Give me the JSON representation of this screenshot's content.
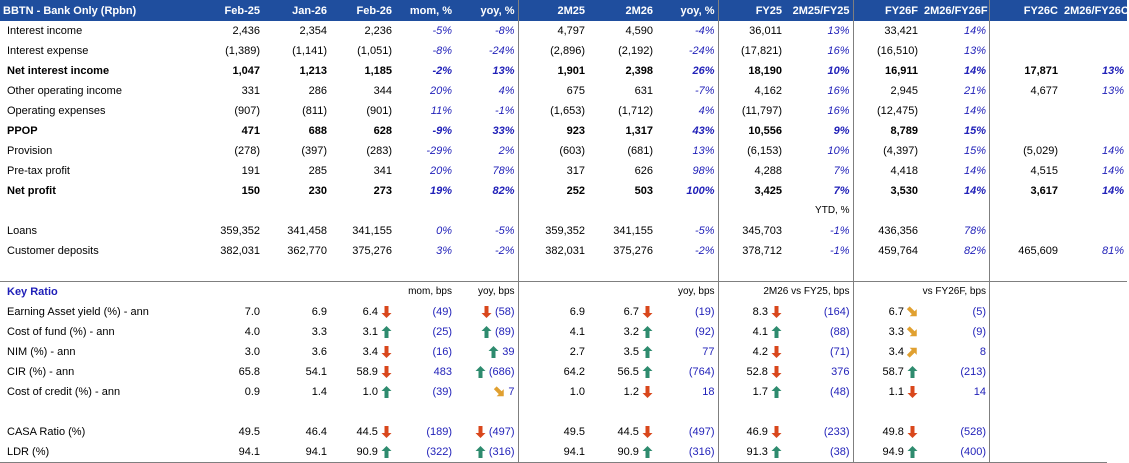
{
  "header": {
    "title": "BBTN - Bank Only (Rpbn)",
    "cols": [
      "Feb-25",
      "Jan-26",
      "Feb-26",
      "mom, %",
      "yoy, %",
      "2M25",
      "2M26",
      "yoy, %",
      "FY25",
      "2M25/FY25",
      "FY26F",
      "2M26/FY26F",
      "",
      "FY26C",
      "2M26/FY26C"
    ]
  },
  "colors": {
    "header_bg": "#1f4e9e",
    "accent_text": "#1f1fb8",
    "arrow_down": "#d9471c",
    "arrow_up": "#2e8b6e",
    "arrow_diag": "#e0a030"
  },
  "pl": [
    {
      "label": "Interest income",
      "bold": false,
      "v": [
        "2,436",
        "2,354",
        "2,236",
        "-5%",
        "-8%",
        "4,797",
        "4,590",
        "-4%",
        "36,011",
        "13%",
        "33,421",
        "14%",
        "",
        "",
        ""
      ]
    },
    {
      "label": "Interest expense",
      "bold": false,
      "v": [
        "(1,389)",
        "(1,141)",
        "(1,051)",
        "-8%",
        "-24%",
        "(2,896)",
        "(2,192)",
        "-24%",
        "(17,821)",
        "16%",
        "(16,510)",
        "13%",
        "",
        "",
        ""
      ]
    },
    {
      "label": "Net interest income",
      "bold": true,
      "v": [
        "1,047",
        "1,213",
        "1,185",
        "-2%",
        "13%",
        "1,901",
        "2,398",
        "26%",
        "18,190",
        "10%",
        "16,911",
        "14%",
        "",
        "17,871",
        "13%"
      ]
    },
    {
      "label": "Other operating income",
      "bold": false,
      "v": [
        "331",
        "286",
        "344",
        "20%",
        "4%",
        "675",
        "631",
        "-7%",
        "4,162",
        "16%",
        "2,945",
        "21%",
        "",
        "4,677",
        "13%"
      ]
    },
    {
      "label": "Operating expenses",
      "bold": false,
      "v": [
        "(907)",
        "(811)",
        "(901)",
        "11%",
        "-1%",
        "(1,653)",
        "(1,712)",
        "4%",
        "(11,797)",
        "16%",
        "(12,475)",
        "14%",
        "",
        "",
        ""
      ]
    },
    {
      "label": "PPOP",
      "bold": true,
      "v": [
        "471",
        "688",
        "628",
        "-9%",
        "33%",
        "923",
        "1,317",
        "43%",
        "10,556",
        "9%",
        "8,789",
        "15%",
        "",
        "",
        ""
      ]
    },
    {
      "label": "Provision",
      "bold": false,
      "v": [
        "(278)",
        "(397)",
        "(283)",
        "-29%",
        "2%",
        "(603)",
        "(681)",
        "13%",
        "(6,153)",
        "10%",
        "(4,397)",
        "15%",
        "",
        "(5,029)",
        "14%"
      ]
    },
    {
      "label": "Pre-tax profit",
      "bold": false,
      "v": [
        "191",
        "285",
        "341",
        "20%",
        "78%",
        "317",
        "626",
        "98%",
        "4,288",
        "7%",
        "4,418",
        "14%",
        "",
        "4,515",
        "14%"
      ]
    },
    {
      "label": "Net profit",
      "bold": true,
      "v": [
        "150",
        "230",
        "273",
        "19%",
        "82%",
        "252",
        "503",
        "100%",
        "3,425",
        "7%",
        "3,530",
        "14%",
        "",
        "3,617",
        "14%"
      ]
    }
  ],
  "ytd_label": "YTD, %",
  "bs": [
    {
      "label": "Loans",
      "v": [
        "359,352",
        "341,458",
        "341,155",
        "0%",
        "-5%",
        "359,352",
        "341,155",
        "-5%",
        "345,703",
        "-1%",
        "436,356",
        "78%",
        "",
        "",
        ""
      ]
    },
    {
      "label": "Customer deposits",
      "v": [
        "382,031",
        "362,770",
        "375,276",
        "3%",
        "-2%",
        "382,031",
        "375,276",
        "-2%",
        "378,712",
        "-1%",
        "459,764",
        "82%",
        "",
        "465,609",
        "81%"
      ]
    }
  ],
  "key_ratio": {
    "title": "Key Ratio",
    "sub_mom": "mom, bps",
    "sub_yoy": "yoy, bps",
    "sub_yoy2": "yoy, bps",
    "sub_fy25": "2M26 vs FY25, bps",
    "sub_fy26": "vs FY26F, bps",
    "rows": [
      {
        "label": "Earning Asset yield (%) - ann",
        "feb25": "7.0",
        "jan26": "6.9",
        "feb26": "6.4",
        "a1": "down",
        "mom": "(49)",
        "a2": "down",
        "yoy": "(58)",
        "m25": "6.9",
        "m26": "6.7",
        "a3": "down",
        "yoy2": "(19)",
        "fy25": "8.3",
        "a4": "down",
        "d25": "(164)",
        "fy26": "6.7",
        "a5": "diag-down",
        "d26": "(5)"
      },
      {
        "label": "Cost of fund (%) - ann",
        "feb25": "4.0",
        "jan26": "3.3",
        "feb26": "3.1",
        "a1": "up",
        "mom": "(25)",
        "a2": "up",
        "yoy": "(89)",
        "m25": "4.1",
        "m26": "3.2",
        "a3": "up",
        "yoy2": "(92)",
        "fy25": "4.1",
        "a4": "up",
        "d25": "(88)",
        "fy26": "3.3",
        "a5": "diag-down",
        "d26": "(9)"
      },
      {
        "label": "NIM (%) - ann",
        "feb25": "3.0",
        "jan26": "3.6",
        "feb26": "3.4",
        "a1": "down",
        "mom": "(16)",
        "a2": "up",
        "yoy": "39",
        "m25": "2.7",
        "m26": "3.5",
        "a3": "up",
        "yoy2": "77",
        "fy25": "4.2",
        "a4": "down",
        "d25": "(71)",
        "fy26": "3.4",
        "a5": "diag-up",
        "d26": "8"
      },
      {
        "label": "CIR (%) - ann",
        "feb25": "65.8",
        "jan26": "54.1",
        "feb26": "58.9",
        "a1": "down",
        "mom": "483",
        "a2": "up",
        "yoy": "(686)",
        "m25": "64.2",
        "m26": "56.5",
        "a3": "up",
        "yoy2": "(764)",
        "fy25": "52.8",
        "a4": "down",
        "d25": "376",
        "fy26": "58.7",
        "a5": "up",
        "d26": "(213)"
      },
      {
        "label": "Cost of credit (%) - ann",
        "feb25": "0.9",
        "jan26": "1.4",
        "feb26": "1.0",
        "a1": "up",
        "mom": "(39)",
        "a2": "diag-down",
        "yoy": "7",
        "m25": "1.0",
        "m26": "1.2",
        "a3": "down",
        "yoy2": "18",
        "fy25": "1.7",
        "a4": "up",
        "d25": "(48)",
        "fy26": "1.1",
        "a5": "down",
        "d26": "14"
      },
      {
        "label": "",
        "feb25": "",
        "jan26": "",
        "feb26": "",
        "a1": "",
        "mom": "",
        "a2": "",
        "yoy": "",
        "m25": "",
        "m26": "",
        "a3": "",
        "yoy2": "",
        "fy25": "",
        "a4": "",
        "d25": "",
        "fy26": "",
        "a5": "",
        "d26": ""
      },
      {
        "label": "CASA Ratio (%)",
        "feb25": "49.5",
        "jan26": "46.4",
        "feb26": "44.5",
        "a1": "down",
        "mom": "(189)",
        "a2": "down",
        "yoy": "(497)",
        "m25": "49.5",
        "m26": "44.5",
        "a3": "down",
        "yoy2": "(497)",
        "fy25": "46.9",
        "a4": "down",
        "d25": "(233)",
        "fy26": "49.8",
        "a5": "down",
        "d26": "(528)"
      },
      {
        "label": "LDR (%)",
        "feb25": "94.1",
        "jan26": "94.1",
        "feb26": "90.9",
        "a1": "up",
        "mom": "(322)",
        "a2": "up",
        "yoy": "(316)",
        "m25": "94.1",
        "m26": "90.9",
        "a3": "up",
        "yoy2": "(316)",
        "fy25": "91.3",
        "a4": "up",
        "d25": "(38)",
        "fy26": "94.9",
        "a5": "up",
        "d26": "(400)"
      }
    ]
  }
}
